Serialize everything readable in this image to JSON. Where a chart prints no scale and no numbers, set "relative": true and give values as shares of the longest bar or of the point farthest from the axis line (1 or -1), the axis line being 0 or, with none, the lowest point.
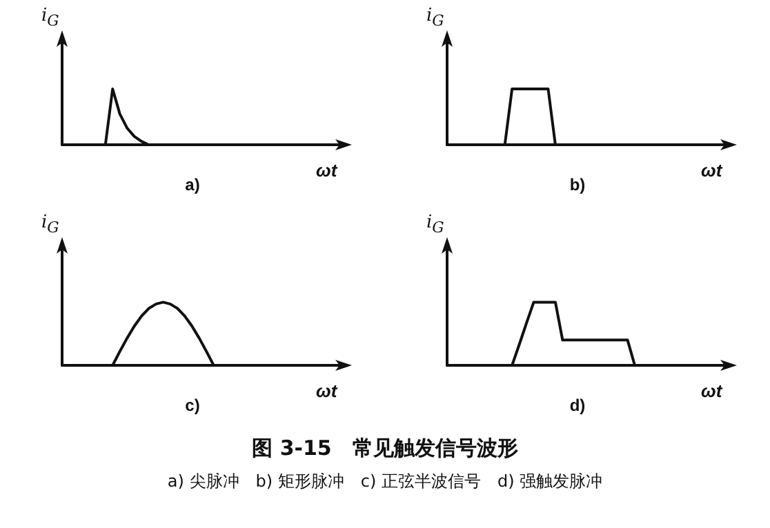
{
  "chart_data": [
    {
      "type": "line",
      "relative": true,
      "ylabel": "i$_{G}$",
      "xlabel": "ωt",
      "annotations": [
        "a)"
      ],
      "categories": [
        null,
        null,
        null,
        null,
        null,
        null,
        null,
        null,
        null,
        null,
        null,
        null,
        null,
        null,
        null,
        null,
        null,
        null,
        null,
        null,
        null,
        null,
        null,
        null,
        null,
        null,
        null,
        null,
        null,
        null,
        null,
        null,
        null,
        null,
        null,
        null,
        null,
        null,
        null,
        null
      ],
      "series": [
        {
          "color": "#111111",
          "values": [
            0,
            0,
            0,
            0,
            0,
            0,
            0,
            1,
            0.55,
            0.3,
            0.15,
            0.06,
            0,
            0,
            0,
            0,
            0,
            0,
            0,
            0,
            0,
            0,
            0,
            0,
            0,
            0,
            0,
            0,
            0,
            0,
            0,
            0,
            0,
            0,
            0,
            0,
            0,
            0,
            0,
            0
          ]
        }
      ]
    },
    {
      "type": "line",
      "relative": true,
      "ylabel": "i$_{G}$",
      "xlabel": "ωt",
      "annotations": [
        "b)"
      ],
      "categories": [
        null,
        null,
        null,
        null,
        null,
        null,
        null,
        null,
        null,
        null,
        null,
        null,
        null,
        null,
        null,
        null,
        null,
        null,
        null,
        null,
        null,
        null,
        null,
        null,
        null,
        null,
        null,
        null,
        null,
        null,
        null,
        null,
        null,
        null,
        null,
        null,
        null,
        null,
        null,
        null
      ],
      "series": [
        {
          "color": "#111111",
          "values": [
            0,
            0,
            0,
            0,
            0,
            0,
            0,
            0,
            0,
            1,
            1,
            1,
            1,
            1,
            1,
            0,
            0,
            0,
            0,
            0,
            0,
            0,
            0,
            0,
            0,
            0,
            0,
            0,
            0,
            0,
            0,
            0,
            0,
            0,
            0,
            0,
            0,
            0,
            0,
            0
          ]
        }
      ]
    },
    {
      "type": "line",
      "relative": true,
      "ylabel": "i$_{G}$",
      "xlabel": "ωt",
      "annotations": [
        "c)"
      ],
      "categories": [
        null,
        null,
        null,
        null,
        null,
        null,
        null,
        null,
        null,
        null,
        null,
        null,
        null,
        null,
        null,
        null,
        null,
        null,
        null,
        null,
        null,
        null,
        null,
        null,
        null,
        null,
        null,
        null,
        null,
        null,
        null,
        null,
        null,
        null,
        null,
        null,
        null,
        null,
        null,
        null
      ],
      "series": [
        {
          "color": "#111111",
          "values": [
            0,
            0,
            0,
            0,
            0,
            0,
            0,
            0,
            0.22,
            0.43,
            0.62,
            0.78,
            0.9,
            0.97,
            1,
            0.97,
            0.9,
            0.78,
            0.62,
            0.43,
            0.22,
            0,
            0,
            0,
            0,
            0,
            0,
            0,
            0,
            0,
            0,
            0,
            0,
            0,
            0,
            0,
            0,
            0,
            0,
            0
          ]
        }
      ]
    },
    {
      "type": "line",
      "relative": true,
      "ylabel": "i$_{G}$",
      "xlabel": "ωt",
      "annotations": [
        "d)"
      ],
      "categories": [
        null,
        null,
        null,
        null,
        null,
        null,
        null,
        null,
        null,
        null,
        null,
        null,
        null,
        null,
        null,
        null,
        null,
        null,
        null,
        null,
        null,
        null,
        null,
        null,
        null,
        null,
        null,
        null,
        null,
        null,
        null,
        null,
        null,
        null,
        null,
        null,
        null,
        null,
        null,
        null
      ],
      "series": [
        {
          "color": "#111111",
          "values": [
            0,
            0,
            0,
            0,
            0,
            0,
            0,
            0,
            0,
            0,
            0.33,
            0.67,
            1,
            1,
            1,
            1,
            0.4,
            0.4,
            0.4,
            0.4,
            0.4,
            0.4,
            0.4,
            0.4,
            0.4,
            0.4,
            0,
            0,
            0,
            0,
            0,
            0,
            0,
            0,
            0,
            0,
            0,
            0,
            0,
            0
          ]
        }
      ]
    },
    {
      "type": "other",
      "title": "图 3-15　常见触发信号波形",
      "annotations": [
        "a) 尖脉冲　b) 矩形脉冲　c) 正弦半波信号　d) 强触发脉冲"
      ]
    }
  ]
}
